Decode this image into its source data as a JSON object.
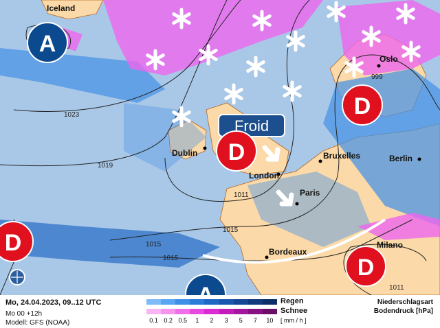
{
  "map": {
    "cities": [
      "Iceland",
      "Oslo",
      "Dublin",
      "London",
      "Bruxelles",
      "Berlin",
      "Paris",
      "Bordeaux",
      "Milano"
    ],
    "isobars": [
      "1023",
      "1019",
      "1011",
      "1015",
      "1015",
      "1015",
      "999",
      "1011"
    ],
    "pressure_systems": [
      {
        "type": "A",
        "label": "A"
      },
      {
        "type": "D",
        "label": "D"
      },
      {
        "type": "D",
        "label": "D"
      },
      {
        "type": "D",
        "label": "D"
      },
      {
        "type": "D",
        "label": "D"
      },
      {
        "type": "A",
        "label": "A"
      }
    ],
    "callout": "Froid",
    "colors": {
      "high": "#0b4a8f",
      "low": "#e0101f",
      "sea": "#a9c8e8",
      "land": "#fbd9a8",
      "rain": "#4b94e4",
      "snow": "#ee66ee",
      "callout": "#1d4f8f"
    }
  },
  "legend": {
    "date": "Mo, 24.04.2023, 09..12 UTC",
    "run": "Mo 00 +12h",
    "model": "Modell: GFS (NOAA)",
    "rain_label": "Regen",
    "snow_label": "Schnee",
    "ticks": [
      "0.1",
      "0.2",
      "0.5",
      "1",
      "2",
      "3",
      "5",
      "7",
      "10"
    ],
    "unit": "[ mm / h ]",
    "title1": "Niederschlagsart",
    "title2": "Bodendruck [hPa]",
    "rain_colors": [
      "#7dbcf8",
      "#5aa6f2",
      "#3f8fe6",
      "#2b7bd8",
      "#1f68c4",
      "#1857ad",
      "#144896",
      "#0f3b7d",
      "#0b2f66"
    ],
    "snow_colors": [
      "#f9b6f4",
      "#f794ef",
      "#f06fe9",
      "#e84ae0",
      "#dc2bd4",
      "#c21dbb",
      "#a5169f",
      "#871283",
      "#6b0e68"
    ]
  }
}
